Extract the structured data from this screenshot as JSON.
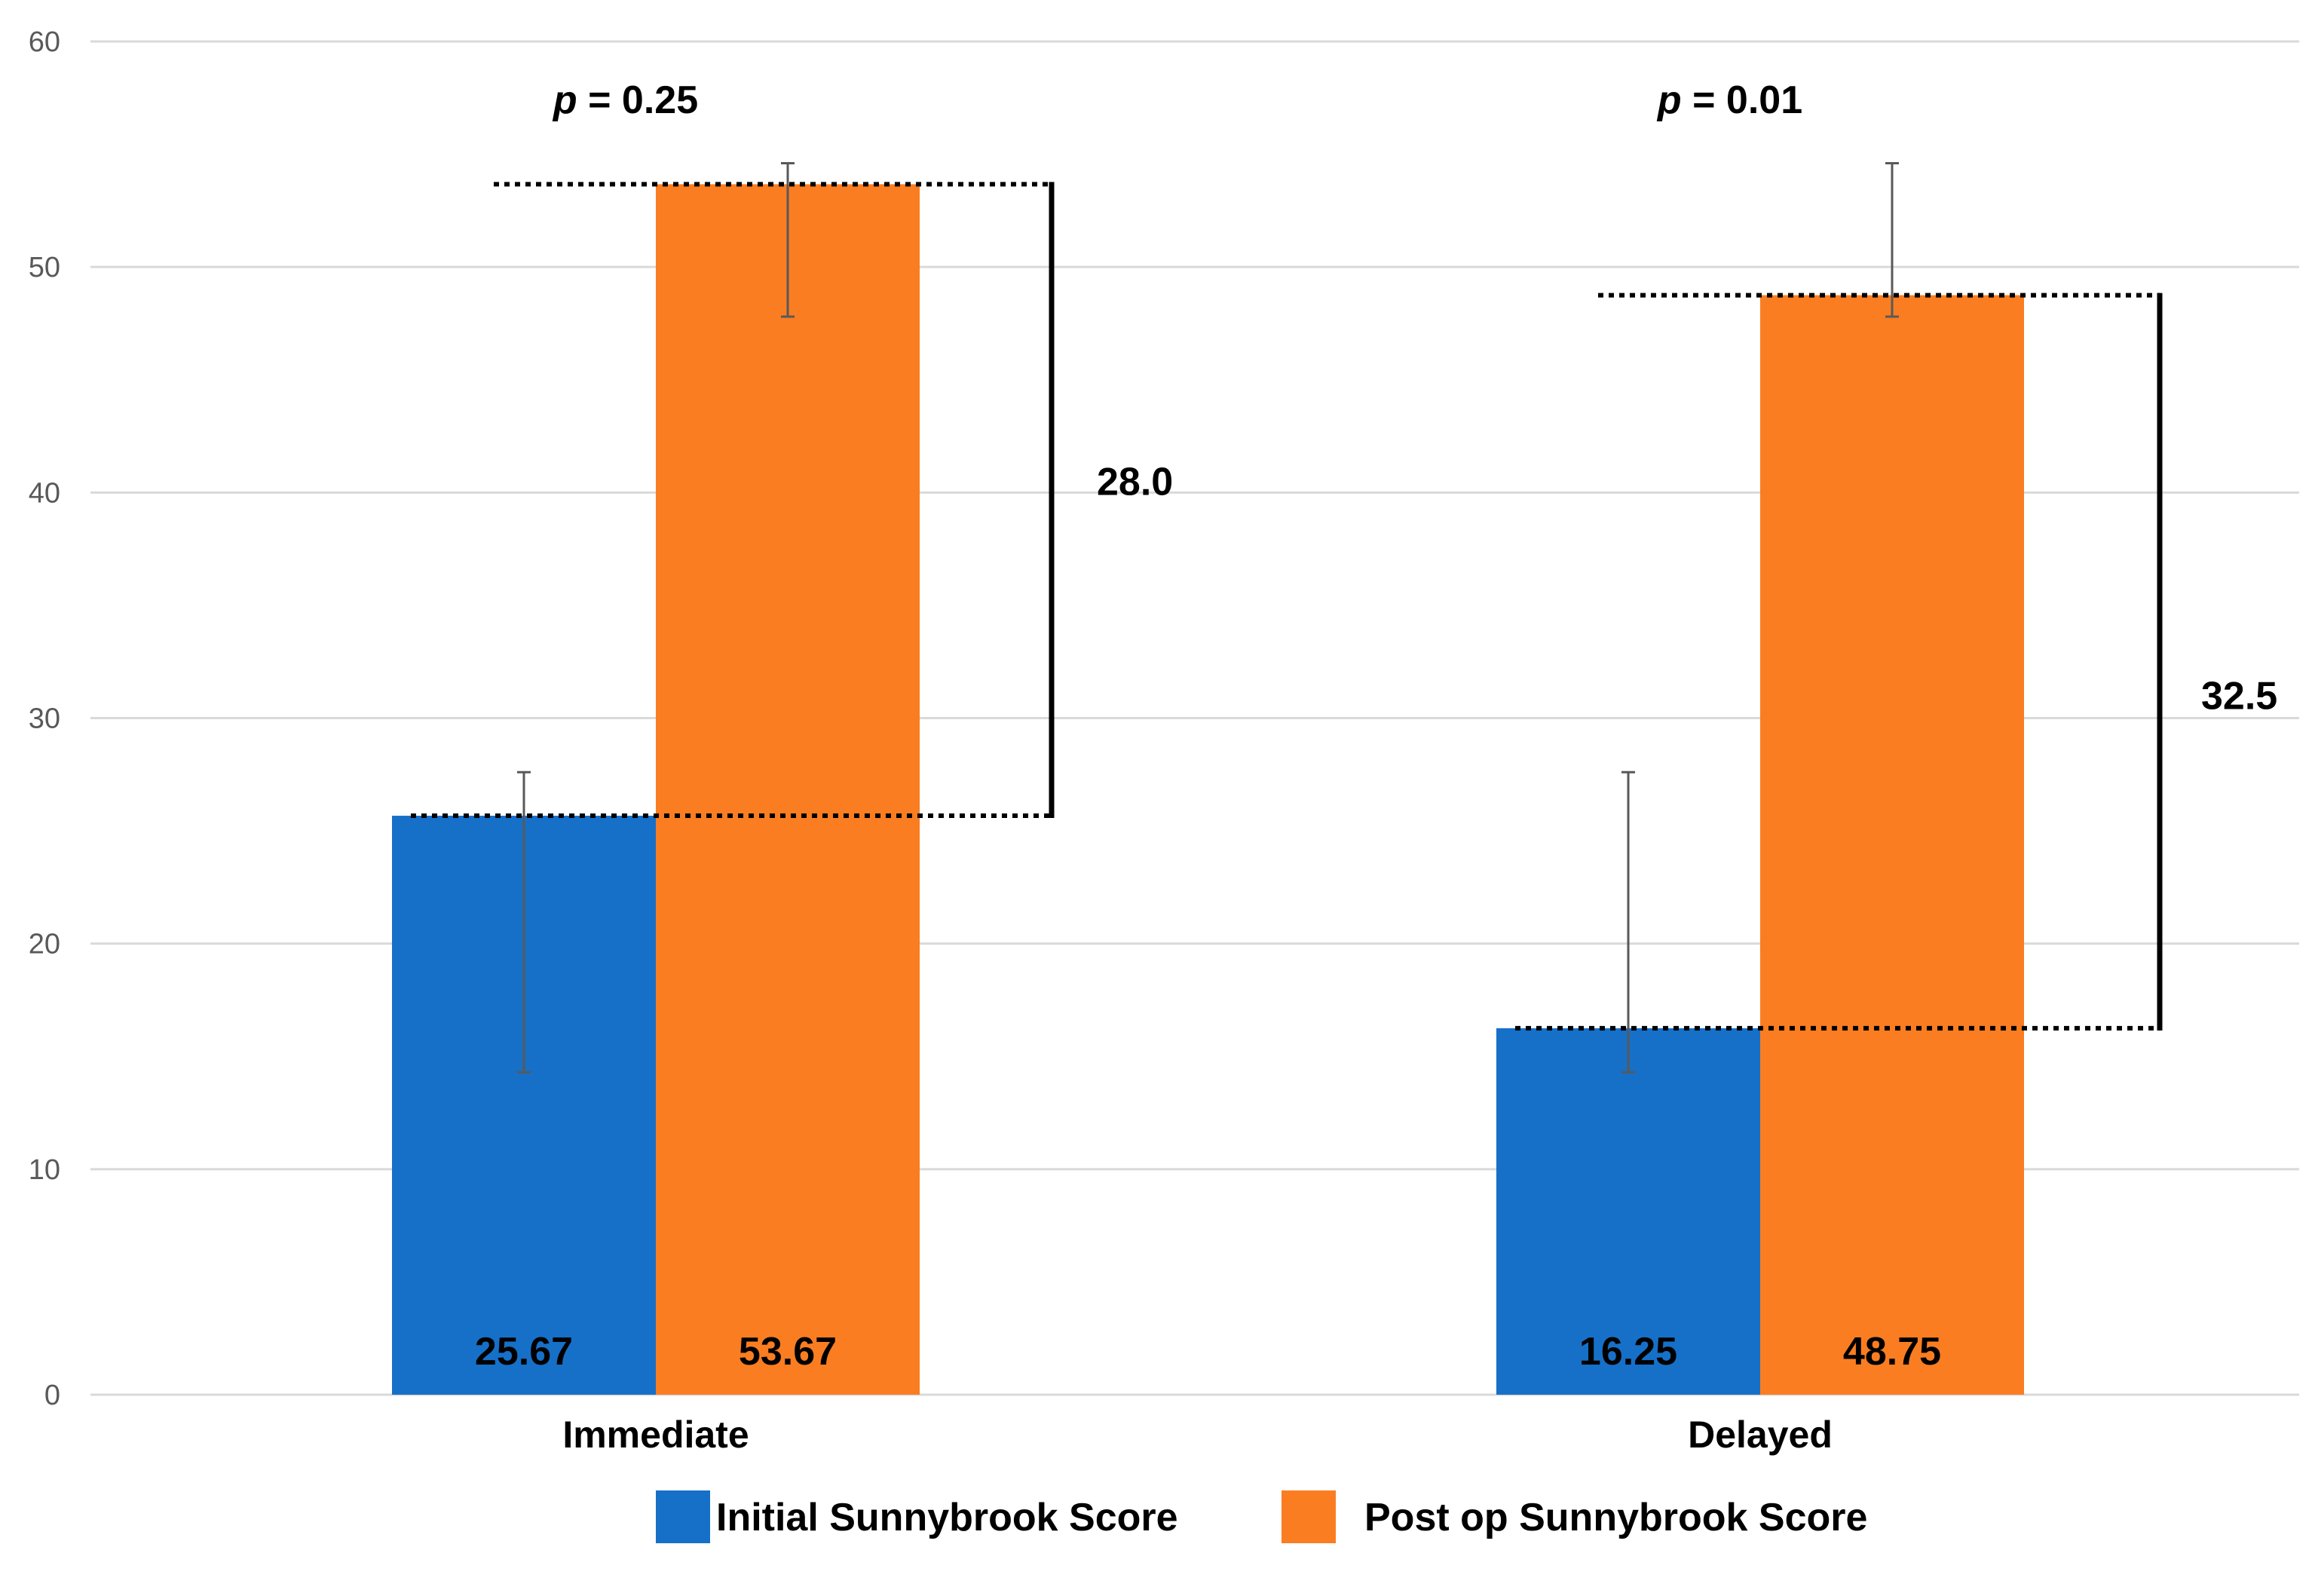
{
  "chart_data": {
    "type": "bar",
    "title": "",
    "xlabel": "",
    "ylabel": "",
    "ylim": [
      0,
      60
    ],
    "yticks": [
      0,
      10,
      20,
      30,
      40,
      50,
      60
    ],
    "grid": true,
    "legend_position": "bottom-center",
    "categories": [
      "Immediate",
      "Delayed"
    ],
    "series": [
      {
        "name": "Initial Sunnybrook Score",
        "color": "#1670C8",
        "values": [
          25.67,
          16.25
        ],
        "labels": [
          "25.67",
          "16.25"
        ],
        "error_low": [
          14.3,
          14.3
        ],
        "error_high": [
          27.6,
          27.6
        ]
      },
      {
        "name": "Post op Sunnybrook Score",
        "color": "#FA7D22",
        "values": [
          53.67,
          48.75
        ],
        "labels": [
          "53.67",
          "48.75"
        ],
        "error_low": [
          47.8,
          47.8
        ],
        "error_high": [
          54.6,
          54.6
        ]
      }
    ],
    "annotations": {
      "p_values": [
        {
          "category": "Immediate",
          "prefix": "p",
          "text": " = 0.25"
        },
        {
          "category": "Delayed",
          "prefix": "p",
          "text": " = 0.01"
        }
      ],
      "differences": [
        {
          "category": "Immediate",
          "text": "28.0",
          "from": 25.67,
          "to": 53.67
        },
        {
          "category": "Delayed",
          "text": "32.5",
          "from": 16.25,
          "to": 48.75
        }
      ]
    }
  }
}
